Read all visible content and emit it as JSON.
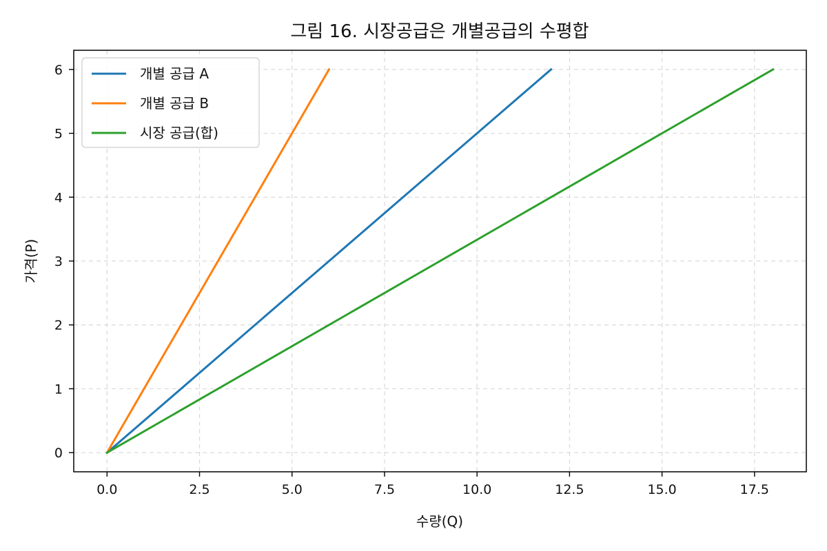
{
  "chart_data": {
    "type": "line",
    "title": "그림 16. 시장공급은 개별공급의 수평합",
    "xlabel": "수량(Q)",
    "ylabel": "가격(P)",
    "xlim": [
      -0.9,
      18.9
    ],
    "ylim": [
      -0.3,
      6.3
    ],
    "x_ticks": [
      0.0,
      2.5,
      5.0,
      7.5,
      10.0,
      12.5,
      15.0,
      17.5
    ],
    "x_tick_labels": [
      "0.0",
      "2.5",
      "5.0",
      "7.5",
      "10.0",
      "12.5",
      "15.0",
      "17.5"
    ],
    "y_ticks": [
      0,
      1,
      2,
      3,
      4,
      5,
      6
    ],
    "y_tick_labels": [
      "0",
      "1",
      "2",
      "3",
      "4",
      "5",
      "6"
    ],
    "grid": true,
    "legend_position": "top-left",
    "series": [
      {
        "name": "개별 공급 A",
        "color": "#1f77b4",
        "x": [
          0,
          12
        ],
        "y": [
          0,
          6
        ]
      },
      {
        "name": "개별 공급 B",
        "color": "#ff7f0e",
        "x": [
          0,
          6
        ],
        "y": [
          0,
          6
        ]
      },
      {
        "name": "시장 공급(합)",
        "color": "#2ca02c",
        "x": [
          0,
          18
        ],
        "y": [
          0,
          6
        ]
      }
    ]
  }
}
